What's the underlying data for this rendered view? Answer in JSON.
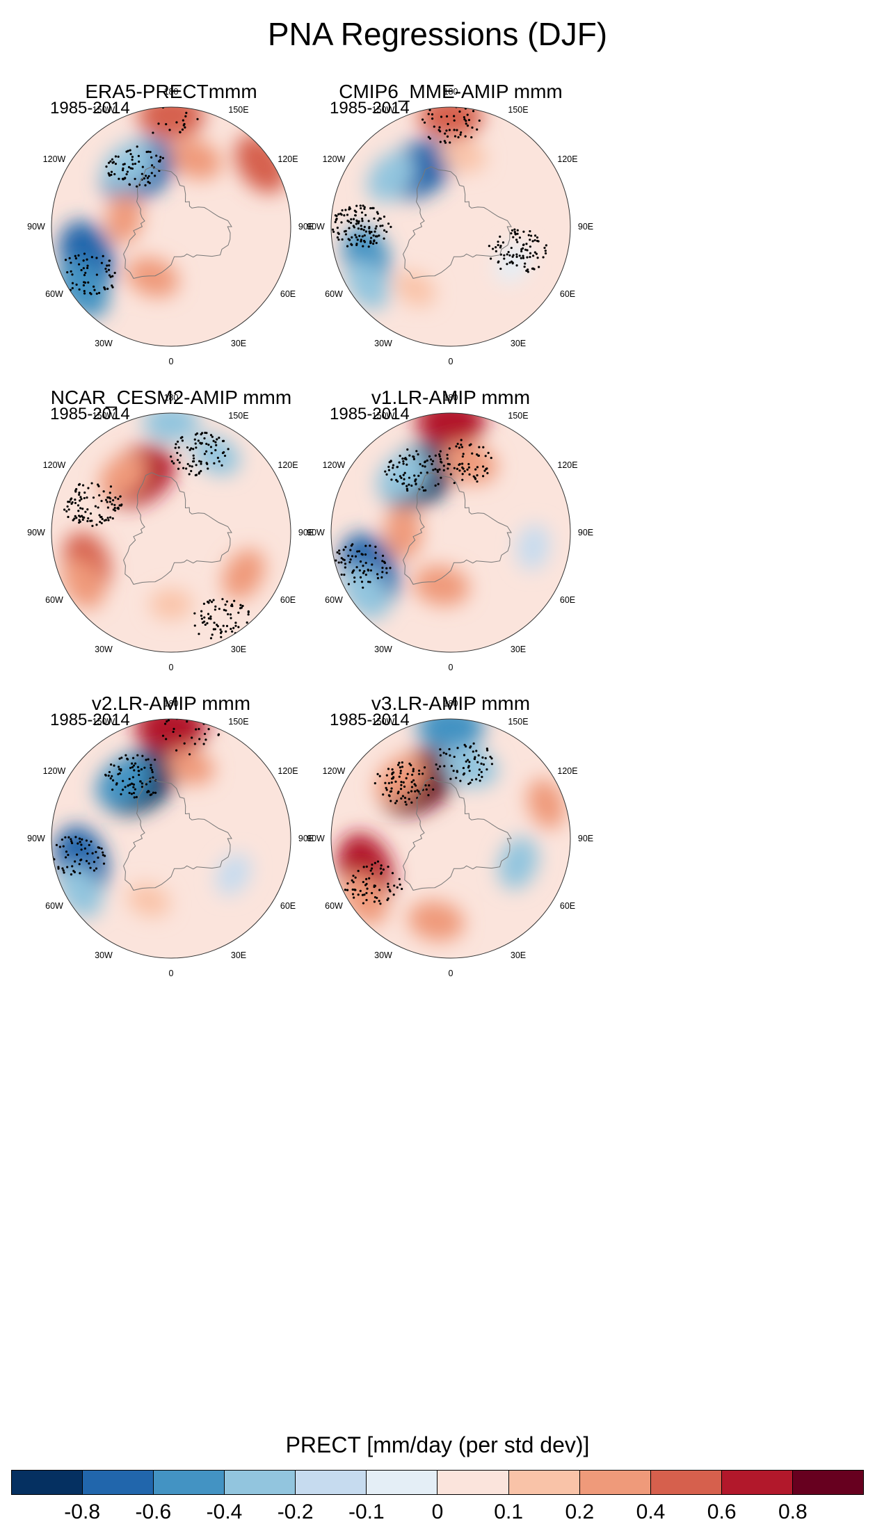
{
  "title": "PNA Regressions (DJF)",
  "lon_labels": [
    "180",
    "150E",
    "120E",
    "90E",
    "60E",
    "30E",
    "0",
    "30W",
    "60W",
    "90W",
    "120W",
    "150W"
  ],
  "panels": [
    {
      "name": "ERA5-PRECTmmm",
      "period": "1985-2014",
      "blobs": [
        {
          "lon": -150,
          "r": 0.55,
          "v": -0.8
        },
        {
          "lon": -145,
          "r": 0.62,
          "v": -0.4
        },
        {
          "lon": 180,
          "r": 0.93,
          "v": 0.55
        },
        {
          "lon": 160,
          "r": 0.6,
          "v": 0.3
        },
        {
          "lon": -70,
          "r": 0.75,
          "v": -0.7
        },
        {
          "lon": -55,
          "r": 0.9,
          "v": -0.5
        },
        {
          "lon": -20,
          "r": 0.45,
          "v": 0.3
        },
        {
          "lon": -100,
          "r": 0.4,
          "v": 0.25
        },
        {
          "lon": 125,
          "r": 0.92,
          "v": 0.5
        }
      ],
      "stipple": [
        {
          "lon": -150,
          "r": 0.6,
          "s": 0.18
        },
        {
          "lon": -60,
          "r": 0.8,
          "s": 0.15
        },
        {
          "lon": 180,
          "r": 0.93,
          "s": 0.06
        }
      ]
    },
    {
      "name": "CMIP6_MME-AMIP  mmm",
      "period": "1985-2014",
      "blobs": [
        {
          "lon": -150,
          "r": 0.55,
          "v": -0.7
        },
        {
          "lon": -130,
          "r": 0.65,
          "v": -0.35
        },
        {
          "lon": 180,
          "r": 0.92,
          "v": 0.5
        },
        {
          "lon": 170,
          "r": 0.6,
          "v": 0.15
        },
        {
          "lon": -70,
          "r": 0.75,
          "v": -0.5
        },
        {
          "lon": -55,
          "r": 0.85,
          "v": -0.3
        },
        {
          "lon": 60,
          "r": 0.6,
          "v": -0.1
        },
        {
          "lon": -30,
          "r": 0.6,
          "v": 0.12
        }
      ],
      "stipple": [
        {
          "lon": -90,
          "r": 0.75,
          "s": 0.3
        },
        {
          "lon": 180,
          "r": 0.85,
          "s": 0.12
        },
        {
          "lon": 70,
          "r": 0.6,
          "s": 0.22
        }
      ]
    },
    {
      "name": "NCAR_CESM2-AMIP  mmm",
      "period": "1985-2014",
      "blobs": [
        {
          "lon": -150,
          "r": 0.55,
          "v": 0.75
        },
        {
          "lon": -140,
          "r": 0.62,
          "v": 0.3
        },
        {
          "lon": 180,
          "r": 0.92,
          "v": -0.35
        },
        {
          "lon": 150,
          "r": 0.75,
          "v": -0.25
        },
        {
          "lon": -70,
          "r": 0.75,
          "v": 0.5
        },
        {
          "lon": -60,
          "r": 0.85,
          "v": 0.3
        },
        {
          "lon": 60,
          "r": 0.7,
          "v": 0.3
        },
        {
          "lon": 0,
          "r": 0.6,
          "v": 0.1
        }
      ],
      "stipple": [
        {
          "lon": -110,
          "r": 0.7,
          "s": 0.25
        },
        {
          "lon": 160,
          "r": 0.7,
          "s": 0.2
        },
        {
          "lon": 30,
          "r": 0.85,
          "s": 0.18
        }
      ]
    },
    {
      "name": "v1.LR-AMIP  mmm",
      "period": "1985-2014",
      "blobs": [
        {
          "lon": -150,
          "r": 0.55,
          "v": -0.85
        },
        {
          "lon": -140,
          "r": 0.62,
          "v": -0.4
        },
        {
          "lon": 180,
          "r": 0.93,
          "v": 0.6
        },
        {
          "lon": 165,
          "r": 0.6,
          "v": 0.35
        },
        {
          "lon": -65,
          "r": 0.75,
          "v": -0.75
        },
        {
          "lon": -55,
          "r": 0.87,
          "v": -0.4
        },
        {
          "lon": -10,
          "r": 0.45,
          "v": 0.35
        },
        {
          "lon": -90,
          "r": 0.4,
          "v": 0.3
        },
        {
          "lon": 80,
          "r": 0.7,
          "v": -0.15
        }
      ],
      "stipple": [
        {
          "lon": -150,
          "r": 0.6,
          "s": 0.2
        },
        {
          "lon": -70,
          "r": 0.8,
          "s": 0.18
        },
        {
          "lon": 170,
          "r": 0.6,
          "s": 0.15
        }
      ]
    },
    {
      "name": "v2.LR-AMIP  mmm",
      "period": "1985-2014",
      "blobs": [
        {
          "lon": -150,
          "r": 0.55,
          "v": -0.85
        },
        {
          "lon": -140,
          "r": 0.62,
          "v": -0.45
        },
        {
          "lon": 180,
          "r": 0.93,
          "v": 0.65
        },
        {
          "lon": 165,
          "r": 0.62,
          "v": 0.2
        },
        {
          "lon": -75,
          "r": 0.78,
          "v": -0.7
        },
        {
          "lon": -60,
          "r": 0.88,
          "v": -0.35
        },
        {
          "lon": 60,
          "r": 0.6,
          "v": -0.12
        },
        {
          "lon": -20,
          "r": 0.55,
          "v": 0.12
        }
      ],
      "stipple": [
        {
          "lon": -150,
          "r": 0.6,
          "s": 0.2
        },
        {
          "lon": -80,
          "r": 0.8,
          "s": 0.16
        },
        {
          "lon": 170,
          "r": 0.9,
          "s": 0.08
        }
      ]
    },
    {
      "name": "v3.LR-AMIP  mmm",
      "period": "1985-2014",
      "blobs": [
        {
          "lon": -150,
          "r": 0.55,
          "v": 0.85
        },
        {
          "lon": -140,
          "r": 0.65,
          "v": 0.35
        },
        {
          "lon": 180,
          "r": 0.93,
          "v": -0.55
        },
        {
          "lon": 165,
          "r": 0.62,
          "v": -0.35
        },
        {
          "lon": -70,
          "r": 0.76,
          "v": 0.7
        },
        {
          "lon": -55,
          "r": 0.88,
          "v": 0.35
        },
        {
          "lon": -10,
          "r": 0.7,
          "v": 0.35
        },
        {
          "lon": 70,
          "r": 0.6,
          "v": -0.3
        },
        {
          "lon": 110,
          "r": 0.85,
          "v": 0.25
        }
      ],
      "stipple": [
        {
          "lon": -140,
          "r": 0.6,
          "s": 0.2
        },
        {
          "lon": -60,
          "r": 0.75,
          "s": 0.16
        },
        {
          "lon": 170,
          "r": 0.65,
          "s": 0.15
        }
      ]
    }
  ],
  "colorbar": {
    "label": "PRECT [mm/day (per std dev)]",
    "levels": [
      "-0.8",
      "-0.6",
      "-0.4",
      "-0.2",
      "-0.1",
      "0",
      "0.1",
      "0.2",
      "0.4",
      "0.6",
      "0.8"
    ],
    "colors": [
      "#053061",
      "#2166ac",
      "#4393c3",
      "#92c5de",
      "#c6dbef",
      "#e4eef6",
      "#fbe4dc",
      "#f9c3a8",
      "#ef9a7a",
      "#d6604d",
      "#b2182b",
      "#67001f"
    ]
  }
}
